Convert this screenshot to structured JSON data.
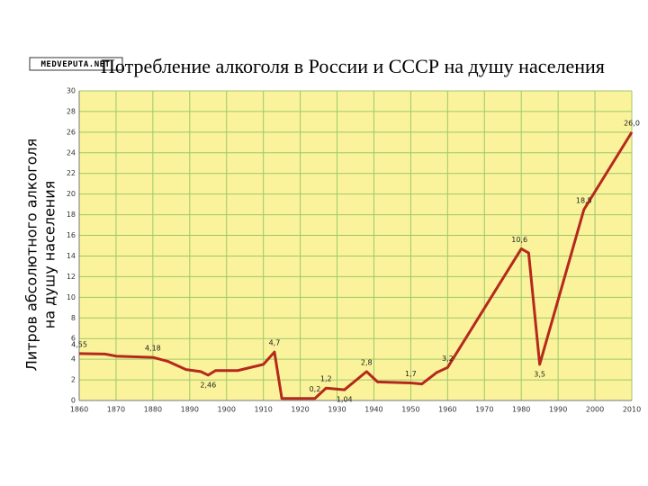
{
  "chart_data": {
    "type": "line",
    "title": "Потребление алкоголя в России и СССР на душу населения",
    "watermark": "MEDVEPUTA.NET",
    "y_label": [
      "Литров абсолютного алкоголя",
      "на душу населения"
    ],
    "x": [
      1860,
      1867,
      1870,
      1880,
      1884,
      1889,
      1893,
      1895,
      1897,
      1903,
      1910,
      1913,
      1915,
      1924,
      1927,
      1932,
      1938,
      1941,
      1950,
      1953,
      1957,
      1960,
      1980,
      1982,
      1985,
      1997,
      2010
    ],
    "series": [
      {
        "color": "#b5291c",
        "values": [
          4.55,
          4.5,
          4.3,
          4.18,
          3.8,
          3.0,
          2.8,
          2.46,
          2.9,
          2.9,
          3.5,
          4.7,
          0.2,
          0.2,
          1.2,
          1.04,
          2.8,
          1.8,
          1.7,
          1.6,
          2.7,
          3.2,
          14.7,
          14.3,
          3.5,
          18.5,
          26.0
        ],
        "value_labels": [
          "4,55",
          null,
          null,
          "4,18",
          null,
          null,
          null,
          "2,46",
          null,
          null,
          null,
          "4,7",
          null,
          "0,2",
          "1,2",
          "1,04",
          "2,8",
          null,
          "1,7",
          null,
          null,
          "3,2",
          null,
          null,
          "3,5",
          "18,5",
          "26,0"
        ]
      }
    ],
    "annotations": [
      "10,6"
    ],
    "xlim": [
      1860,
      2010
    ],
    "xticks": [
      1860,
      1870,
      1880,
      1890,
      1900,
      1910,
      1920,
      1930,
      1940,
      1950,
      1960,
      1970,
      1980,
      1990,
      2000,
      2010
    ],
    "ylim": [
      0,
      30
    ],
    "yticks": [
      0,
      2,
      4,
      6,
      8,
      10,
      12,
      14,
      16,
      18,
      20,
      22,
      24,
      26,
      28,
      30
    ],
    "grid": true,
    "background": "#fbf39b",
    "grid_color": "#9cc86a"
  }
}
